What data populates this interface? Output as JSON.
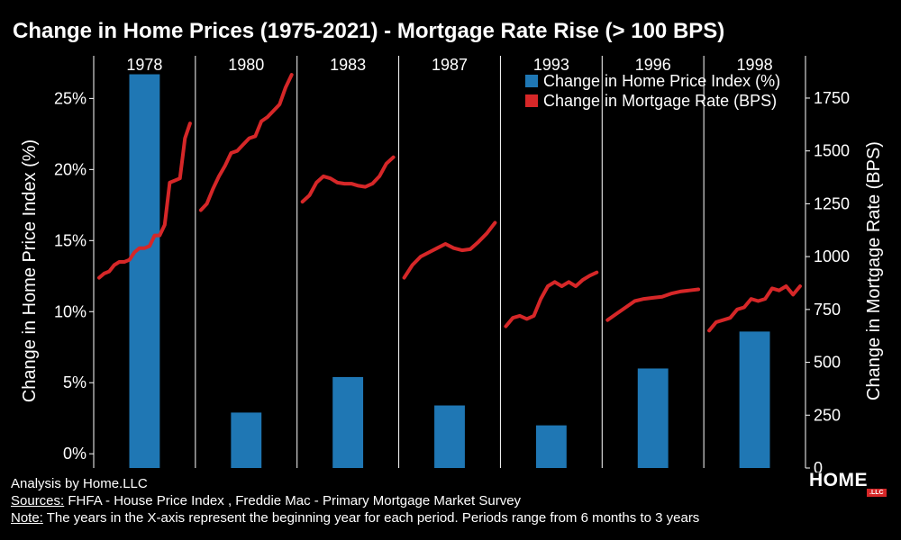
{
  "chart_data": {
    "type": "bar",
    "title": "Change in Home Prices (1975-2021) - Mortgage Rate Rise (> 100 BPS)",
    "categories": [
      "1978",
      "1980",
      "1983",
      "1987",
      "1993",
      "1996",
      "1998"
    ],
    "ylabel": "Change in Home Price Index (%)",
    "y2label": "Change in Mortgage Rate (BPS)",
    "ylim": [
      -1,
      28
    ],
    "y2lim": [
      0,
      1950
    ],
    "yticks": [
      0,
      5,
      10,
      15,
      20,
      25
    ],
    "ytick_labels": [
      "0%",
      "5%",
      "10%",
      "15%",
      "20%",
      "25%"
    ],
    "y2ticks": [
      0,
      250,
      500,
      750,
      1000,
      1250,
      1500,
      1750
    ],
    "y2tick_labels": [
      "0",
      "250",
      "500",
      "750",
      "1000",
      "1250",
      "1500",
      "1750"
    ],
    "legend_position": "top-right",
    "grid": false,
    "series": [
      {
        "name": "Change in Home Price Index (%)",
        "kind": "bar",
        "axis": "left",
        "color": "#1f77b4",
        "values": [
          26.7,
          2.9,
          5.4,
          3.4,
          2.0,
          6.0,
          8.6
        ]
      },
      {
        "name": "Change in Mortgage Rate (BPS)",
        "kind": "line",
        "axis": "right",
        "color": "#d62728",
        "segments": [
          [
            900,
            920,
            930,
            960,
            975,
            975,
            985,
            1020,
            1040,
            1040,
            1050,
            1100,
            1100,
            1150,
            1350,
            1360,
            1370,
            1560,
            1630
          ],
          [
            1220,
            1250,
            1320,
            1380,
            1430,
            1490,
            1500,
            1530,
            1560,
            1570,
            1640,
            1660,
            1690,
            1720,
            1800,
            1860
          ],
          [
            1260,
            1290,
            1350,
            1380,
            1370,
            1350,
            1345,
            1345,
            1335,
            1330,
            1345,
            1380,
            1440,
            1470
          ],
          [
            900,
            960,
            1000,
            1020,
            1040,
            1060,
            1040,
            1030,
            1035,
            1070,
            1110,
            1160
          ],
          [
            670,
            710,
            720,
            705,
            720,
            800,
            860,
            880,
            860,
            880,
            860,
            890,
            910,
            925
          ],
          [
            700,
            730,
            760,
            790,
            800,
            805,
            810,
            825,
            835,
            840,
            845
          ],
          [
            650,
            690,
            700,
            710,
            750,
            760,
            800,
            790,
            800,
            850,
            840,
            860,
            820,
            860
          ]
        ]
      }
    ]
  },
  "footer": {
    "analysis": "Analysis by Home.LLC",
    "sources_label": "Sources:",
    "sources_text": " FHFA - House Price Index , Freddie Mac - Primary Mortgage Market Survey",
    "note_label": "Note:",
    "note_text": " The years in the X-axis represent the beginning year for each period. Periods range from 6 months to 3 years"
  },
  "logo": {
    "word": "HOME",
    "suffix": ".LLC"
  }
}
